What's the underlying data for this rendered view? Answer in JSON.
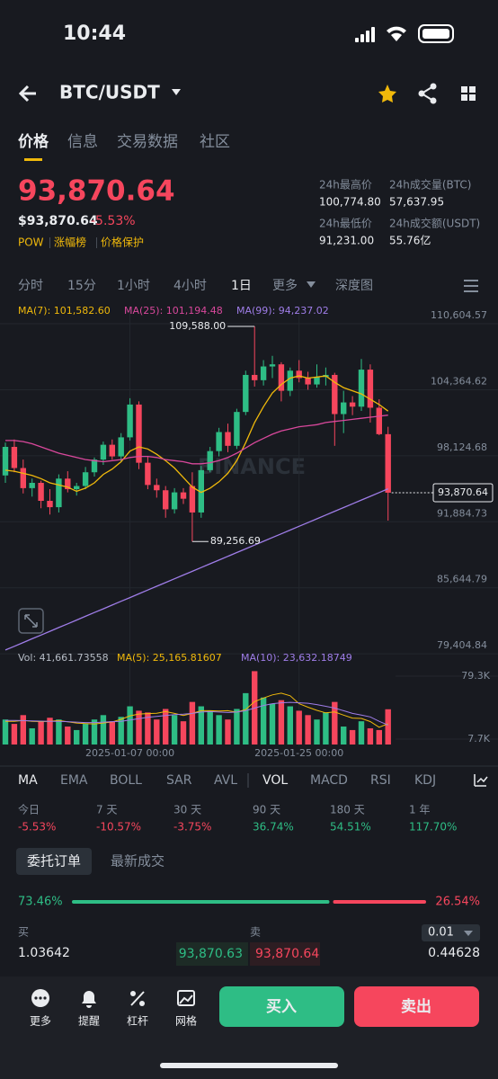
{
  "status": {
    "time": "10:44"
  },
  "header": {
    "pair": "BTC/USDT"
  },
  "tabs": [
    "价格",
    "信息",
    "交易数据",
    "社区"
  ],
  "price": {
    "last": "93,870.64",
    "usd": "$93,870.64",
    "change": "-5.53%",
    "tags": [
      "POW",
      "涨幅榜",
      "价格保护"
    ],
    "stats": [
      {
        "label": "24h最高价",
        "value": "100,774.80"
      },
      {
        "label": "24h成交量(BTC)",
        "value": "57,637.95"
      },
      {
        "label": "24h最低价",
        "value": "91,231.00"
      },
      {
        "label": "24h成交额(USDT)",
        "value": "55.76亿"
      }
    ]
  },
  "intervals": [
    "分时",
    "15分",
    "1小时",
    "4小时",
    "1日",
    "更多",
    "深度图"
  ],
  "chart_data": {
    "type": "candlestick",
    "watermark": "BINANCE",
    "categories": [
      null,
      null,
      null,
      null,
      null,
      null,
      null,
      null,
      null,
      null,
      null,
      null,
      null,
      null,
      "2025-01-07 00:00",
      null,
      null,
      null,
      null,
      null,
      null,
      null,
      null,
      null,
      null,
      null,
      null,
      null,
      null,
      null,
      null,
      null,
      null,
      "2025-01-25 00:00",
      null,
      null,
      null,
      null,
      null,
      null,
      null,
      null,
      null,
      null
    ],
    "open": [
      95500,
      98200,
      96200,
      94300,
      94800,
      93100,
      92500,
      95200,
      94200,
      94500,
      95800,
      97000,
      98400,
      97300,
      99100,
      102200,
      96700,
      94600,
      94100,
      92300,
      93900,
      94500,
      92000,
      96000,
      97800,
      99600,
      98300,
      101500,
      105000,
      104500,
      105800,
      106000,
      103500,
      105400,
      104700,
      104100,
      104800,
      105000,
      101300,
      102400,
      102000,
      105500,
      101900,
      99400
    ],
    "high": [
      98600,
      98900,
      97000,
      95200,
      95000,
      94200,
      95600,
      95900,
      94800,
      96300,
      97200,
      98700,
      98900,
      99500,
      102800,
      102500,
      97300,
      95200,
      94500,
      94300,
      94300,
      95800,
      96400,
      98200,
      100000,
      100400,
      101800,
      105400,
      109588,
      106400,
      106800,
      106200,
      105700,
      106400,
      105300,
      106000,
      105700,
      105200,
      103500,
      103000,
      106500,
      106000,
      102700,
      100100
    ],
    "low": [
      94800,
      95800,
      93800,
      93500,
      92400,
      91800,
      92000,
      93900,
      93600,
      94200,
      95400,
      96500,
      97000,
      96800,
      98800,
      96100,
      94200,
      93400,
      91500,
      91900,
      92800,
      89256.69,
      91500,
      95800,
      97300,
      97700,
      98000,
      101200,
      103900,
      104000,
      104700,
      102500,
      103000,
      104300,
      103600,
      103800,
      104000,
      98300,
      99500,
      101200,
      101600,
      100500,
      99300,
      91231
    ],
    "close": [
      98200,
      96200,
      94300,
      94800,
      93100,
      92500,
      95200,
      94200,
      94500,
      95800,
      97000,
      98400,
      97300,
      99100,
      102200,
      96700,
      94600,
      94100,
      92300,
      93900,
      93300,
      92000,
      96000,
      97800,
      99600,
      98300,
      101500,
      105000,
      104500,
      105800,
      106000,
      103500,
      105400,
      104700,
      104100,
      104800,
      105000,
      101300,
      102400,
      102000,
      105500,
      101900,
      99400,
      93870.64
    ],
    "up_color": "#2ebd85",
    "down_color": "#f6465d",
    "ylim": [
      78400,
      111540
    ],
    "yticks": [
      {
        "value": 110604.57,
        "label": "110,604.57"
      },
      {
        "value": 104364.62,
        "label": "104,364.62"
      },
      {
        "value": 98124.68,
        "label": "98,124.68"
      },
      {
        "value": 91884.73,
        "label": "91,884.73"
      },
      {
        "value": 85644.79,
        "label": "85,644.79"
      },
      {
        "value": 79404.84,
        "label": "79,404.84"
      }
    ],
    "annotations": [
      {
        "value": 109588,
        "label": "109,588.00"
      },
      {
        "value": 89256.69,
        "label": "89,256.69"
      }
    ],
    "last": {
      "value": 93870.64,
      "label": "93,870.64"
    },
    "series": [
      {
        "name": "MA(7): 101,582.60",
        "color": "#f0b90b",
        "values": [
          96000,
          95900,
          95700,
          95500,
          95200,
          94800,
          94600,
          94400,
          94000,
          94300,
          94800,
          95600,
          96100,
          96800,
          97800,
          98200,
          98000,
          97500,
          96900,
          96200,
          95300,
          94400,
          93900,
          94300,
          94900,
          95700,
          96900,
          98600,
          100500,
          102000,
          103300,
          104100,
          104700,
          104900,
          104700,
          104800,
          104900,
          104300,
          103800,
          103500,
          103200,
          102700,
          102200,
          101582.6
        ]
      },
      {
        "name": "MA(25): 101,194.48",
        "color": "#d9489c",
        "values": [
          98800,
          98800,
          98700,
          98500,
          98200,
          97900,
          97600,
          97400,
          97200,
          97000,
          96900,
          96800,
          96900,
          97000,
          97200,
          97300,
          97300,
          97200,
          97000,
          96900,
          96800,
          96600,
          96600,
          96700,
          96900,
          97200,
          97600,
          98100,
          98600,
          99000,
          99400,
          99700,
          99900,
          100100,
          100200,
          100300,
          100500,
          100600,
          100700,
          100800,
          100900,
          101000,
          101100,
          101194.48
        ]
      },
      {
        "name": "MA(99): 94,237.02",
        "color": "#9f7de8",
        "values": [
          79000,
          79354,
          79709,
          80063,
          80417,
          80772,
          81126,
          81480,
          81835,
          82189,
          82543,
          82898,
          83252,
          83606,
          83961,
          84315,
          84670,
          85024,
          85378,
          85733,
          86087,
          86441,
          86796,
          87150,
          87504,
          87859,
          88213,
          88567,
          88922,
          89276,
          89630,
          89985,
          90339,
          90693,
          91048,
          91402,
          91757,
          92111,
          92465,
          92820,
          93174,
          93528,
          93883,
          94237.02
        ]
      }
    ],
    "volume": {
      "name": "Vol: 41,661.73558",
      "ylim": [
        1563,
        86460
      ],
      "yticks": [
        {
          "value": 79300,
          "label": "79.3K"
        },
        {
          "value": 7700,
          "label": "7.7K"
        }
      ],
      "values": [
        30000,
        25000,
        35000,
        20000,
        28000,
        32000,
        30000,
        22000,
        18000,
        25000,
        30000,
        35000,
        28000,
        33000,
        45000,
        40000,
        38000,
        30000,
        42000,
        35000,
        28000,
        50000,
        45000,
        40000,
        35000,
        30000,
        42000,
        60000,
        85000,
        55000,
        48000,
        52000,
        45000,
        40000,
        35000,
        30000,
        38000,
        50000,
        22000,
        18000,
        28000,
        20000,
        18000,
        41661.73558
      ],
      "series": [
        {
          "name": "MA(5): 25,165.81607",
          "color": "#f0b90b",
          "values": [
            28000,
            28000,
            29000,
            28000,
            27600,
            28000,
            29000,
            27400,
            26000,
            25400,
            25000,
            26000,
            27200,
            30200,
            34200,
            36200,
            36800,
            37200,
            39000,
            37000,
            34600,
            37000,
            40000,
            40000,
            39600,
            40000,
            38400,
            41400,
            50400,
            54400,
            58000,
            60000,
            57000,
            48000,
            44000,
            40400,
            37600,
            38600,
            35000,
            31600,
            31200,
            27600,
            21200,
            25165.81607
          ]
        },
        {
          "name": "MA(10): 23,632.18749",
          "color": "#9f7de8",
          "values": [
            29000,
            29000,
            28800,
            28500,
            28200,
            28000,
            28000,
            27500,
            27000,
            26500,
            26500,
            27000,
            27500,
            28000,
            29500,
            31000,
            32500,
            33500,
            34500,
            35500,
            36000,
            37000,
            38500,
            39000,
            38500,
            38000,
            38500,
            40000,
            43000,
            46000,
            48000,
            49000,
            49500,
            49000,
            48500,
            47000,
            45000,
            43000,
            40000,
            37000,
            35000,
            33000,
            28000,
            23632.18749
          ]
        }
      ]
    }
  },
  "indicators": [
    "MA",
    "EMA",
    "BOLL",
    "SAR",
    "AVL",
    "VOL",
    "MACD",
    "RSI",
    "KDJ"
  ],
  "performance": [
    {
      "period": "今日",
      "change": "-5.53%"
    },
    {
      "period": "7 天",
      "change": "-10.57%"
    },
    {
      "period": "30 天",
      "change": "-3.75%"
    },
    {
      "period": "90 天",
      "change": "36.74%"
    },
    {
      "period": "180 天",
      "change": "54.51%"
    },
    {
      "period": "1 年",
      "change": "117.70%"
    }
  ],
  "orderbook": {
    "tabs": [
      "委托订单",
      "最新成交"
    ],
    "ratio": {
      "values": [
        73.46,
        26.54
      ],
      "value_labels": [
        "73.46%",
        "26.54%"
      ]
    },
    "bid_header": "买",
    "ask_header": "卖",
    "precision": "0.01",
    "row": {
      "bid_qty": "1.03642",
      "bid_price": "93,870.63",
      "ask_price": "93,870.64",
      "ask_qty": "0.44628"
    }
  },
  "nav": {
    "items": [
      "更多",
      "提醒",
      "杠杆",
      "网格"
    ],
    "buy": "买入",
    "sell": "卖出"
  }
}
